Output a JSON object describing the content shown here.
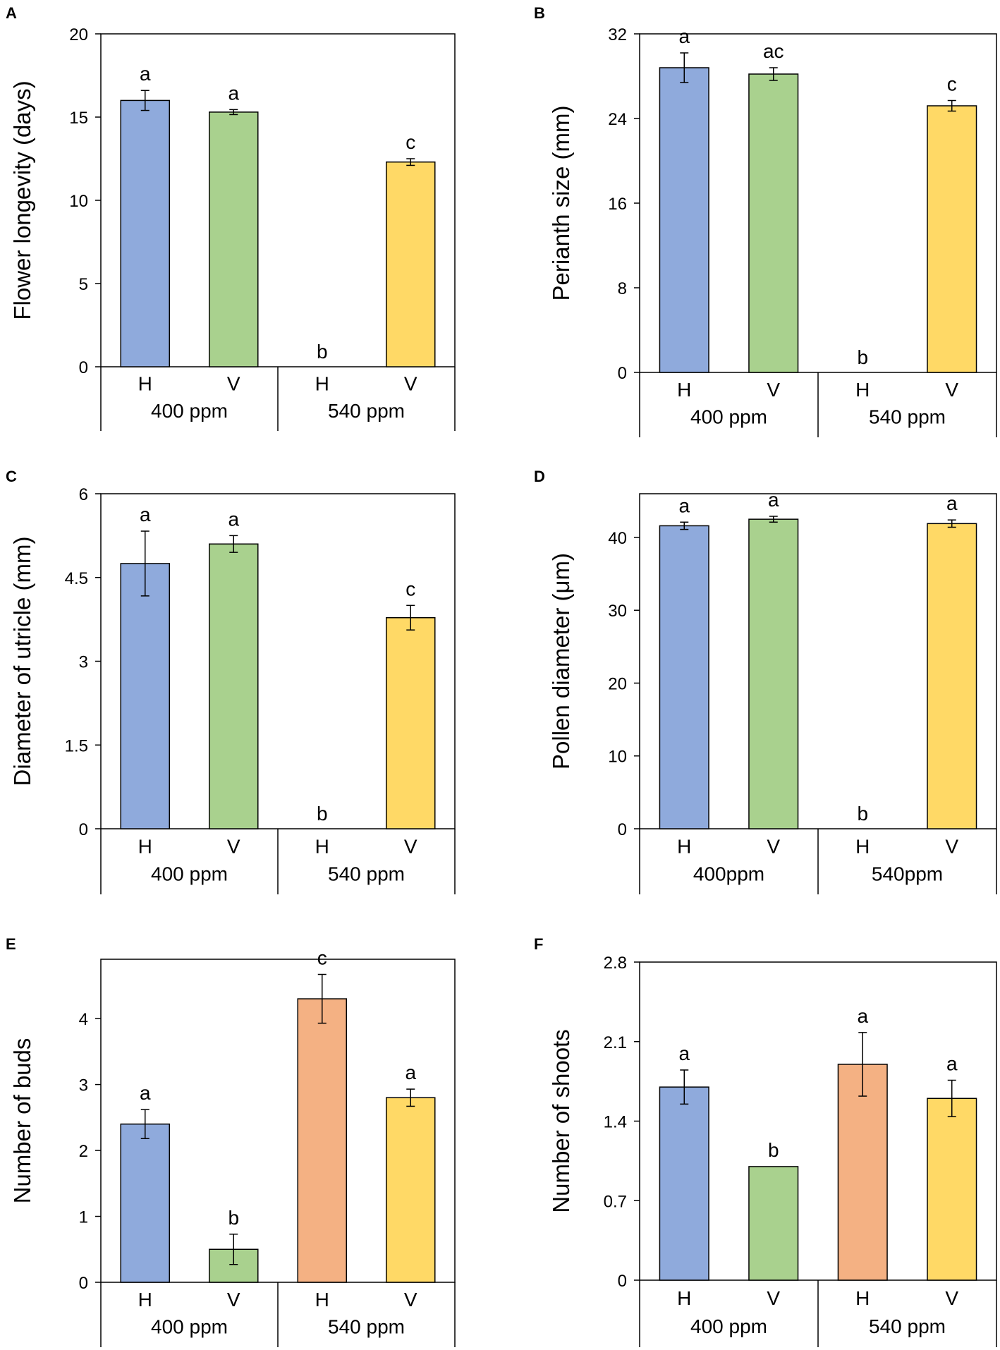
{
  "colors": {
    "H400": "#8faadc",
    "V400": "#a9d18e",
    "H540": "#f4b183",
    "V540": "#ffd966",
    "axis": "#000000"
  },
  "chart_data": [
    {
      "type": "bar",
      "panel": "A",
      "ylabel": "Flower longevity (days)",
      "ylim": [
        0,
        20
      ],
      "yticks": [
        0,
        5,
        10,
        15,
        20
      ],
      "ytick_labels": [
        "0",
        "5",
        "10",
        "15",
        "20"
      ],
      "groups": [
        {
          "label": "400 ppm",
          "bars": [
            {
              "label": "H",
              "value": 16.0,
              "error": 0.6,
              "sig": "a",
              "color": "#8faadc"
            },
            {
              "label": "V",
              "value": 15.3,
              "error": 0.15,
              "sig": "a",
              "color": "#a9d18e"
            }
          ]
        },
        {
          "label": "540 ppm",
          "bars": [
            {
              "label": "H",
              "value": 0,
              "error": 0,
              "sig": "b",
              "color": "#f4b183"
            },
            {
              "label": "V",
              "value": 12.3,
              "error": 0.2,
              "sig": "c",
              "color": "#ffd966"
            }
          ]
        }
      ]
    },
    {
      "type": "bar",
      "panel": "B",
      "ylabel": "Perianth size (mm)",
      "ylim": [
        0,
        32
      ],
      "yticks": [
        0,
        8,
        16,
        24,
        32
      ],
      "ytick_labels": [
        "0",
        "8",
        "16",
        "24",
        "32"
      ],
      "groups": [
        {
          "label": "400 ppm",
          "bars": [
            {
              "label": "H",
              "value": 28.8,
              "error": 1.4,
              "sig": "a",
              "color": "#8faadc"
            },
            {
              "label": "V",
              "value": 28.2,
              "error": 0.6,
              "sig": "ac",
              "color": "#a9d18e"
            }
          ]
        },
        {
          "label": "540 ppm",
          "bars": [
            {
              "label": "H",
              "value": 0,
              "error": 0,
              "sig": "b",
              "color": "#f4b183"
            },
            {
              "label": "V",
              "value": 25.2,
              "error": 0.5,
              "sig": "c",
              "color": "#ffd966"
            }
          ]
        }
      ]
    },
    {
      "type": "bar",
      "panel": "C",
      "ylabel": "Diameter of utricle (mm)",
      "ylim": [
        0,
        6
      ],
      "yticks": [
        0,
        1.5,
        3,
        4.5,
        6
      ],
      "ytick_labels": [
        "0",
        "1.5",
        "3",
        "4.5",
        "6"
      ],
      "groups": [
        {
          "label": "400 ppm",
          "bars": [
            {
              "label": "H",
              "value": 4.75,
              "error": 0.58,
              "sig": "a",
              "color": "#8faadc"
            },
            {
              "label": "V",
              "value": 5.1,
              "error": 0.15,
              "sig": "a",
              "color": "#a9d18e"
            }
          ]
        },
        {
          "label": "540 ppm",
          "bars": [
            {
              "label": "H",
              "value": 0,
              "error": 0,
              "sig": "b",
              "color": "#f4b183"
            },
            {
              "label": "V",
              "value": 3.78,
              "error": 0.22,
              "sig": "c",
              "color": "#ffd966"
            }
          ]
        }
      ]
    },
    {
      "type": "bar",
      "panel": "D",
      "ylabel": "Pollen diameter (μm)",
      "ylim": [
        0,
        46
      ],
      "yticks": [
        0,
        10,
        20,
        30,
        40
      ],
      "ytick_labels": [
        "0",
        "10",
        "20",
        "30",
        "40"
      ],
      "groups": [
        {
          "label": "400ppm",
          "bars": [
            {
              "label": "H",
              "value": 41.6,
              "error": 0.5,
              "sig": "a",
              "color": "#8faadc"
            },
            {
              "label": "V",
              "value": 42.5,
              "error": 0.4,
              "sig": "a",
              "color": "#a9d18e"
            }
          ]
        },
        {
          "label": "540ppm",
          "bars": [
            {
              "label": "H",
              "value": 0,
              "error": 0,
              "sig": "b",
              "color": "#f4b183"
            },
            {
              "label": "V",
              "value": 41.9,
              "error": 0.5,
              "sig": "a",
              "color": "#ffd966"
            }
          ]
        }
      ]
    },
    {
      "type": "bar",
      "panel": "E",
      "ylabel": "Number of buds",
      "ylim": [
        0,
        4.9
      ],
      "yticks": [
        0,
        1,
        2,
        3,
        4
      ],
      "ytick_labels": [
        "0",
        "1",
        "2",
        "3",
        "4"
      ],
      "groups": [
        {
          "label": "400 ppm",
          "bars": [
            {
              "label": "H",
              "value": 2.4,
              "error": 0.22,
              "sig": "a",
              "color": "#8faadc"
            },
            {
              "label": "V",
              "value": 0.5,
              "error": 0.23,
              "sig": "b",
              "color": "#a9d18e"
            }
          ]
        },
        {
          "label": "540 ppm",
          "bars": [
            {
              "label": "H",
              "value": 4.3,
              "error": 0.37,
              "sig": "c",
              "color": "#f4b183"
            },
            {
              "label": "V",
              "value": 2.8,
              "error": 0.13,
              "sig": "a",
              "color": "#ffd966"
            }
          ]
        }
      ]
    },
    {
      "type": "bar",
      "panel": "F",
      "ylabel": "Number of shoots",
      "ylim": [
        0,
        2.8
      ],
      "yticks": [
        0,
        0.7,
        1.4,
        2.1,
        2.8
      ],
      "ytick_labels": [
        "0",
        "0.7",
        "1.4",
        "2.1",
        "2.8"
      ],
      "groups": [
        {
          "label": "400 ppm",
          "bars": [
            {
              "label": "H",
              "value": 1.7,
              "error": 0.15,
              "sig": "a",
              "color": "#8faadc"
            },
            {
              "label": "V",
              "value": 1.0,
              "error": 0,
              "sig": "b",
              "color": "#a9d18e"
            }
          ]
        },
        {
          "label": "540 ppm",
          "bars": [
            {
              "label": "H",
              "value": 1.9,
              "error": 0.28,
              "sig": "a",
              "color": "#f4b183"
            },
            {
              "label": "V",
              "value": 1.6,
              "error": 0.16,
              "sig": "a",
              "color": "#ffd966"
            }
          ]
        }
      ]
    }
  ]
}
